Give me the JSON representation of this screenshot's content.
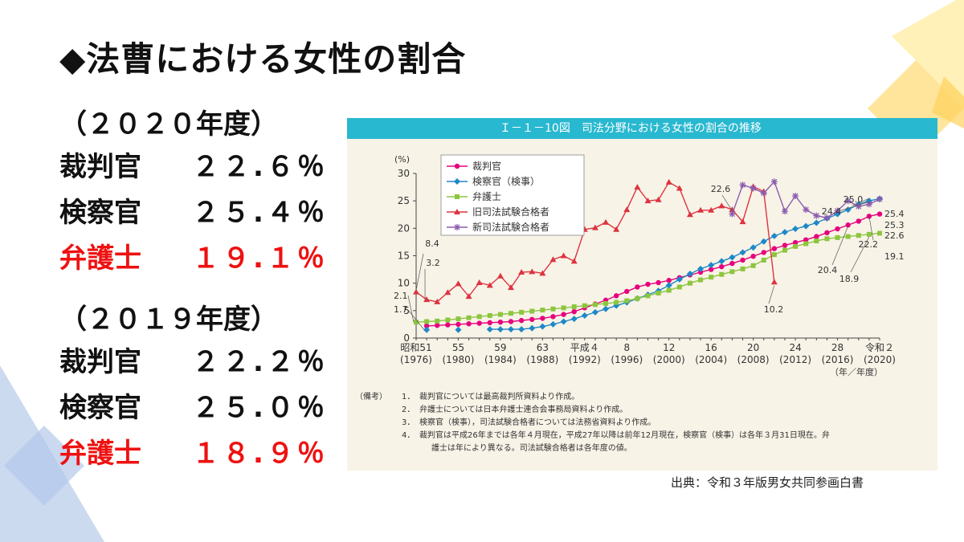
{
  "slide": {
    "title": "◆法曹における女性の割合",
    "year_2020": "（２０２０年度）",
    "year_2019": "（２０１９年度）",
    "stats_2020": [
      {
        "label": "裁判官",
        "value": "２２.６％",
        "highlight": false
      },
      {
        "label": "検察官",
        "value": "２５.４％",
        "highlight": false
      },
      {
        "label": "弁護士",
        "value": "１９.１％",
        "highlight": true
      }
    ],
    "stats_2019": [
      {
        "label": "裁判官",
        "value": "２２.２％",
        "highlight": false
      },
      {
        "label": "検察官",
        "value": "２５.０％",
        "highlight": false
      },
      {
        "label": "弁護士",
        "value": "１８.９％",
        "highlight": true
      }
    ],
    "source": "出典：令和３年版男女共同参画白書",
    "highlight_color": "#ee1111"
  },
  "figure": {
    "header": "Ｉ－１－10図　司法分野における女性の割合の推移",
    "notes_label": "（備考）",
    "notes": [
      {
        "n": "1．",
        "text": "裁判官については最高裁判所資料より作成。"
      },
      {
        "n": "2．",
        "text": "弁護士については日本弁護士連合会事務局資料より作成。"
      },
      {
        "n": "3．",
        "text": "検察官（検事），司法試験合格者については法務省資料より作成。"
      },
      {
        "n": "4．",
        "text": "裁判官は平成26年までは各年４月現在，平成27年以降は前年12月現在，検察官（検事）は各年３月31日現在。弁"
      }
    ],
    "note_cont": "護士は年により異なる。司法試験合格者は各年度の値。"
  },
  "chart_data": {
    "type": "line",
    "y_unit": "(%)",
    "ylim": [
      0,
      30
    ],
    "y_ticks": [
      "0",
      "5",
      "10",
      "15",
      "20",
      "25",
      "30"
    ],
    "xlim": [
      1976,
      2020
    ],
    "x_unit": "（年／年度）",
    "x_tick_labels": [
      {
        "year": 1976,
        "era": "昭和51",
        "paren": "(1976)"
      },
      {
        "year": 1980,
        "era": "55",
        "paren": "(1980)"
      },
      {
        "year": 1984,
        "era": "59",
        "paren": "(1984)"
      },
      {
        "year": 1988,
        "era": "63",
        "paren": "(1988)"
      },
      {
        "year": 1992,
        "era": "平成４",
        "paren": "(1992)"
      },
      {
        "year": 1996,
        "era": "8",
        "paren": "(1996)"
      },
      {
        "year": 2000,
        "era": "12",
        "paren": "(2000)"
      },
      {
        "year": 2004,
        "era": "16",
        "paren": "(2004)"
      },
      {
        "year": 2008,
        "era": "20",
        "paren": "(2008)"
      },
      {
        "year": 2012,
        "era": "24",
        "paren": "(2012)"
      },
      {
        "year": 2016,
        "era": "28",
        "paren": "(2016)"
      },
      {
        "year": 2020,
        "era": "令和２",
        "paren": "(2020)"
      }
    ],
    "series": [
      {
        "name": "裁判官",
        "color": "#e6007e",
        "marker": "circle",
        "points": [
          [
            1977,
            2.2
          ],
          [
            1978,
            2.3
          ],
          [
            1979,
            2.4
          ],
          [
            1980,
            2.5
          ],
          [
            1981,
            2.6
          ],
          [
            1982,
            2.7
          ],
          [
            1983,
            2.8
          ],
          [
            1984,
            2.9
          ],
          [
            1985,
            3.0
          ],
          [
            1986,
            3.2
          ],
          [
            1987,
            3.4
          ],
          [
            1988,
            3.6
          ],
          [
            1989,
            3.9
          ],
          [
            1990,
            4.3
          ],
          [
            1991,
            4.8
          ],
          [
            1992,
            5.5
          ],
          [
            1993,
            6.2
          ],
          [
            1994,
            6.9
          ],
          [
            1995,
            7.7
          ],
          [
            1996,
            8.5
          ],
          [
            1997,
            9.3
          ],
          [
            1998,
            9.8
          ],
          [
            1999,
            10.1
          ],
          [
            2000,
            10.5
          ],
          [
            2001,
            11.0
          ],
          [
            2002,
            11.5
          ],
          [
            2003,
            12.0
          ],
          [
            2004,
            12.5
          ],
          [
            2005,
            13.0
          ],
          [
            2006,
            13.6
          ],
          [
            2007,
            14.2
          ],
          [
            2008,
            14.9
          ],
          [
            2009,
            15.6
          ],
          [
            2010,
            16.3
          ],
          [
            2011,
            16.9
          ],
          [
            2012,
            17.4
          ],
          [
            2013,
            17.9
          ],
          [
            2014,
            18.5
          ],
          [
            2015,
            19.2
          ],
          [
            2016,
            19.9
          ],
          [
            2017,
            20.6
          ],
          [
            2018,
            21.3
          ],
          [
            2019,
            22.2
          ],
          [
            2020,
            22.6
          ]
        ]
      },
      {
        "name": "検察官（検事）",
        "color": "#1e88c8",
        "marker": "diamond",
        "points": [
          [
            1977,
            1.5
          ],
          [
            1980,
            1.5
          ],
          [
            1983,
            1.6
          ],
          [
            1984,
            1.6
          ],
          [
            1985,
            1.6
          ],
          [
            1986,
            1.6
          ],
          [
            1987,
            1.8
          ],
          [
            1988,
            2.1
          ],
          [
            1989,
            2.5
          ],
          [
            1990,
            3.0
          ],
          [
            1991,
            3.5
          ],
          [
            1992,
            4.1
          ],
          [
            1993,
            4.7
          ],
          [
            1994,
            5.3
          ],
          [
            1995,
            5.9
          ],
          [
            1996,
            6.5
          ],
          [
            1997,
            7.2
          ],
          [
            1998,
            7.9
          ],
          [
            1999,
            8.6
          ],
          [
            2000,
            9.6
          ],
          [
            2001,
            10.7
          ],
          [
            2002,
            11.7
          ],
          [
            2003,
            12.6
          ],
          [
            2004,
            13.3
          ],
          [
            2005,
            14.0
          ],
          [
            2006,
            14.7
          ],
          [
            2007,
            15.6
          ],
          [
            2008,
            16.5
          ],
          [
            2009,
            17.6
          ],
          [
            2010,
            18.6
          ],
          [
            2011,
            19.3
          ],
          [
            2012,
            19.9
          ],
          [
            2013,
            20.4
          ],
          [
            2014,
            21.0
          ],
          [
            2015,
            21.8
          ],
          [
            2016,
            22.6
          ],
          [
            2017,
            23.4
          ],
          [
            2018,
            24.4
          ],
          [
            2019,
            25.0
          ],
          [
            2020,
            25.4
          ]
        ]
      },
      {
        "name": "弁護士",
        "color": "#8cc63f",
        "marker": "square",
        "points": [
          [
            1976,
            2.9
          ],
          [
            1977,
            3.0
          ],
          [
            1978,
            3.1
          ],
          [
            1979,
            3.3
          ],
          [
            1980,
            3.5
          ],
          [
            1981,
            3.7
          ],
          [
            1982,
            3.9
          ],
          [
            1983,
            4.1
          ],
          [
            1984,
            4.3
          ],
          [
            1985,
            4.5
          ],
          [
            1986,
            4.7
          ],
          [
            1987,
            4.9
          ],
          [
            1988,
            5.1
          ],
          [
            1989,
            5.3
          ],
          [
            1990,
            5.5
          ],
          [
            1991,
            5.7
          ],
          [
            1992,
            5.9
          ],
          [
            1993,
            6.1
          ],
          [
            1994,
            6.3
          ],
          [
            1995,
            6.5
          ],
          [
            1996,
            6.8
          ],
          [
            1997,
            7.2
          ],
          [
            1998,
            7.7
          ],
          [
            1999,
            8.2
          ],
          [
            2000,
            8.7
          ],
          [
            2001,
            9.3
          ],
          [
            2002,
            10.0
          ],
          [
            2003,
            10.6
          ],
          [
            2004,
            11.1
          ],
          [
            2005,
            11.6
          ],
          [
            2006,
            12.1
          ],
          [
            2007,
            12.6
          ],
          [
            2008,
            13.2
          ],
          [
            2009,
            14.2
          ],
          [
            2010,
            15.2
          ],
          [
            2011,
            16.0
          ],
          [
            2012,
            16.7
          ],
          [
            2013,
            17.2
          ],
          [
            2014,
            17.7
          ],
          [
            2015,
            18.1
          ],
          [
            2016,
            18.3
          ],
          [
            2017,
            18.5
          ],
          [
            2018,
            18.7
          ],
          [
            2019,
            18.9
          ],
          [
            2020,
            19.1
          ]
        ]
      },
      {
        "name": "旧司法試験合格者",
        "color": "#dd3340",
        "marker": "triangle",
        "points": [
          [
            1976,
            8.4
          ],
          [
            1977,
            7.0
          ],
          [
            1978,
            6.6
          ],
          [
            1979,
            8.3
          ],
          [
            1980,
            9.9
          ],
          [
            1981,
            7.6
          ],
          [
            1982,
            10.1
          ],
          [
            1983,
            9.6
          ],
          [
            1984,
            11.3
          ],
          [
            1985,
            9.2
          ],
          [
            1986,
            12.0
          ],
          [
            1987,
            12.1
          ],
          [
            1988,
            11.8
          ],
          [
            1989,
            14.3
          ],
          [
            1990,
            15.0
          ],
          [
            1991,
            14.0
          ],
          [
            1992,
            19.8
          ],
          [
            1993,
            20.1
          ],
          [
            1994,
            21.1
          ],
          [
            1995,
            19.8
          ],
          [
            1996,
            23.4
          ],
          [
            1997,
            27.5
          ],
          [
            1998,
            25.0
          ],
          [
            1999,
            25.2
          ],
          [
            2000,
            28.4
          ],
          [
            2001,
            27.3
          ],
          [
            2002,
            22.5
          ],
          [
            2003,
            23.3
          ],
          [
            2004,
            23.3
          ],
          [
            2005,
            24.1
          ],
          [
            2006,
            23.4
          ],
          [
            2007,
            21.2
          ],
          [
            2008,
            27.6
          ],
          [
            2009,
            26.7
          ],
          [
            2010,
            10.2
          ]
        ]
      },
      {
        "name": "新司法試験合格者",
        "color": "#8b5db0",
        "marker": "star",
        "points": [
          [
            2006,
            22.6
          ],
          [
            2007,
            27.9
          ],
          [
            2008,
            27.3
          ],
          [
            2009,
            26.4
          ],
          [
            2010,
            28.5
          ],
          [
            2011,
            23.1
          ],
          [
            2012,
            25.9
          ],
          [
            2013,
            23.4
          ],
          [
            2014,
            22.3
          ],
          [
            2015,
            21.9
          ],
          [
            2016,
            23.2
          ],
          [
            2017,
            25.0
          ],
          [
            2018,
            24.0
          ],
          [
            2019,
            24.4
          ],
          [
            2020,
            25.3
          ]
        ]
      }
    ],
    "data_labels": [
      {
        "text": "8.4"
      },
      {
        "text": "3.2"
      },
      {
        "text": "2.1"
      },
      {
        "text": "1.7"
      },
      {
        "text": "22.6"
      },
      {
        "text": "10.2"
      },
      {
        "text": "24.4"
      },
      {
        "text": "25.0"
      },
      {
        "text": "20.4"
      },
      {
        "text": "18.9"
      },
      {
        "text": "22.2"
      },
      {
        "text": "25.4"
      },
      {
        "text": "25.3"
      },
      {
        "text": "22.6"
      },
      {
        "text": "19.1"
      }
    ]
  }
}
